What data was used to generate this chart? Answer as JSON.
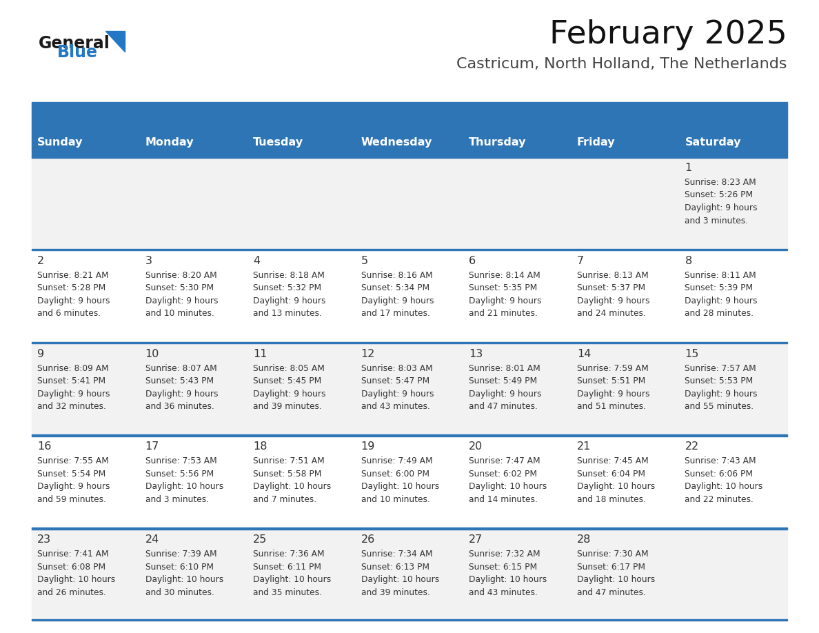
{
  "title": "February 2025",
  "subtitle": "Castricum, North Holland, The Netherlands",
  "header_bg": "#2e75b6",
  "header_text_color": "#ffffff",
  "days_of_week": [
    "Sunday",
    "Monday",
    "Tuesday",
    "Wednesday",
    "Thursday",
    "Friday",
    "Saturday"
  ],
  "row_bg_light": "#f2f2f2",
  "row_bg_white": "#ffffff",
  "separator_color": "#2e75b6",
  "text_color": "#333333",
  "day_num_color": "#333333",
  "logo_general_color": "#1a1a1a",
  "logo_blue_color": "#2278c5",
  "weeks": [
    [
      {
        "day": null,
        "info": null
      },
      {
        "day": null,
        "info": null
      },
      {
        "day": null,
        "info": null
      },
      {
        "day": null,
        "info": null
      },
      {
        "day": null,
        "info": null
      },
      {
        "day": null,
        "info": null
      },
      {
        "day": 1,
        "info": "Sunrise: 8:23 AM\nSunset: 5:26 PM\nDaylight: 9 hours\nand 3 minutes."
      }
    ],
    [
      {
        "day": 2,
        "info": "Sunrise: 8:21 AM\nSunset: 5:28 PM\nDaylight: 9 hours\nand 6 minutes."
      },
      {
        "day": 3,
        "info": "Sunrise: 8:20 AM\nSunset: 5:30 PM\nDaylight: 9 hours\nand 10 minutes."
      },
      {
        "day": 4,
        "info": "Sunrise: 8:18 AM\nSunset: 5:32 PM\nDaylight: 9 hours\nand 13 minutes."
      },
      {
        "day": 5,
        "info": "Sunrise: 8:16 AM\nSunset: 5:34 PM\nDaylight: 9 hours\nand 17 minutes."
      },
      {
        "day": 6,
        "info": "Sunrise: 8:14 AM\nSunset: 5:35 PM\nDaylight: 9 hours\nand 21 minutes."
      },
      {
        "day": 7,
        "info": "Sunrise: 8:13 AM\nSunset: 5:37 PM\nDaylight: 9 hours\nand 24 minutes."
      },
      {
        "day": 8,
        "info": "Sunrise: 8:11 AM\nSunset: 5:39 PM\nDaylight: 9 hours\nand 28 minutes."
      }
    ],
    [
      {
        "day": 9,
        "info": "Sunrise: 8:09 AM\nSunset: 5:41 PM\nDaylight: 9 hours\nand 32 minutes."
      },
      {
        "day": 10,
        "info": "Sunrise: 8:07 AM\nSunset: 5:43 PM\nDaylight: 9 hours\nand 36 minutes."
      },
      {
        "day": 11,
        "info": "Sunrise: 8:05 AM\nSunset: 5:45 PM\nDaylight: 9 hours\nand 39 minutes."
      },
      {
        "day": 12,
        "info": "Sunrise: 8:03 AM\nSunset: 5:47 PM\nDaylight: 9 hours\nand 43 minutes."
      },
      {
        "day": 13,
        "info": "Sunrise: 8:01 AM\nSunset: 5:49 PM\nDaylight: 9 hours\nand 47 minutes."
      },
      {
        "day": 14,
        "info": "Sunrise: 7:59 AM\nSunset: 5:51 PM\nDaylight: 9 hours\nand 51 minutes."
      },
      {
        "day": 15,
        "info": "Sunrise: 7:57 AM\nSunset: 5:53 PM\nDaylight: 9 hours\nand 55 minutes."
      }
    ],
    [
      {
        "day": 16,
        "info": "Sunrise: 7:55 AM\nSunset: 5:54 PM\nDaylight: 9 hours\nand 59 minutes."
      },
      {
        "day": 17,
        "info": "Sunrise: 7:53 AM\nSunset: 5:56 PM\nDaylight: 10 hours\nand 3 minutes."
      },
      {
        "day": 18,
        "info": "Sunrise: 7:51 AM\nSunset: 5:58 PM\nDaylight: 10 hours\nand 7 minutes."
      },
      {
        "day": 19,
        "info": "Sunrise: 7:49 AM\nSunset: 6:00 PM\nDaylight: 10 hours\nand 10 minutes."
      },
      {
        "day": 20,
        "info": "Sunrise: 7:47 AM\nSunset: 6:02 PM\nDaylight: 10 hours\nand 14 minutes."
      },
      {
        "day": 21,
        "info": "Sunrise: 7:45 AM\nSunset: 6:04 PM\nDaylight: 10 hours\nand 18 minutes."
      },
      {
        "day": 22,
        "info": "Sunrise: 7:43 AM\nSunset: 6:06 PM\nDaylight: 10 hours\nand 22 minutes."
      }
    ],
    [
      {
        "day": 23,
        "info": "Sunrise: 7:41 AM\nSunset: 6:08 PM\nDaylight: 10 hours\nand 26 minutes."
      },
      {
        "day": 24,
        "info": "Sunrise: 7:39 AM\nSunset: 6:10 PM\nDaylight: 10 hours\nand 30 minutes."
      },
      {
        "day": 25,
        "info": "Sunrise: 7:36 AM\nSunset: 6:11 PM\nDaylight: 10 hours\nand 35 minutes."
      },
      {
        "day": 26,
        "info": "Sunrise: 7:34 AM\nSunset: 6:13 PM\nDaylight: 10 hours\nand 39 minutes."
      },
      {
        "day": 27,
        "info": "Sunrise: 7:32 AM\nSunset: 6:15 PM\nDaylight: 10 hours\nand 43 minutes."
      },
      {
        "day": 28,
        "info": "Sunrise: 7:30 AM\nSunset: 6:17 PM\nDaylight: 10 hours\nand 47 minutes."
      },
      {
        "day": null,
        "info": null
      }
    ]
  ]
}
